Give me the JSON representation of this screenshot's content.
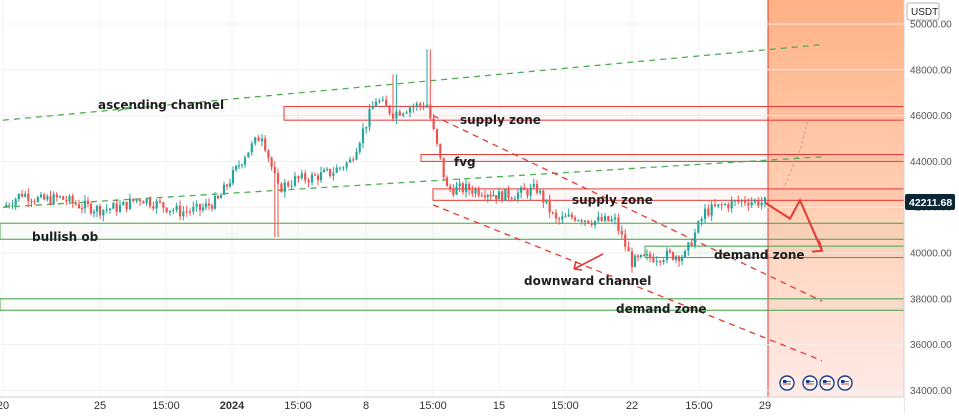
{
  "symbol": {
    "quote_currency": "USDT"
  },
  "price_label": "42211.68",
  "colors": {
    "bull": "#26a69a",
    "bear": "#ef5350",
    "channel": "#4caf50",
    "supply": "#e53935",
    "demand": "#43a047",
    "forecast": "#e53935",
    "projection_bg": "#ffb38a",
    "price_label_bg": "#0b2735"
  },
  "annotations": {
    "ascending_channel": "ascending channel",
    "supply_zone_upper": "supply zone",
    "fvg": "fvg",
    "supply_zone_lower": "supply zone",
    "bullish_ob": "bullish ob",
    "downward_channel": "downward channel",
    "demand_zone_upper": "demand zone",
    "demand_zone_lower": "demand zone"
  },
  "event_icons": [
    "us-flag-icon",
    "us-flag-icon",
    "us-flag-icon",
    "us-flag-icon"
  ],
  "chart_data": {
    "type": "candlestick",
    "title": "",
    "xlabel": "",
    "ylabel": "",
    "ylim": [
      33800,
      50800
    ],
    "grid": true,
    "y_ticks": [
      "50000.00",
      "48000.00",
      "46000.00",
      "44000.00",
      "42000.00",
      "40000.00",
      "38000.00",
      "36000.00",
      "34000.00"
    ],
    "x_ticks": [
      "20",
      "25",
      "15:00",
      "2024",
      "15:00",
      "8",
      "15:00",
      "15",
      "15:00",
      "22",
      "15:00",
      "29"
    ],
    "current_price": 42211.68,
    "series": [
      {
        "name": "close",
        "points": [
          {
            "x": "20",
            "y": 42000
          },
          {
            "x": "21",
            "y": 42600
          },
          {
            "x": "22",
            "y": 42300
          },
          {
            "x": "23",
            "y": 42400
          },
          {
            "x": "24",
            "y": 42100
          },
          {
            "x": "25",
            "y": 41900
          },
          {
            "x": "26",
            "y": 42000
          },
          {
            "x": "27",
            "y": 42400
          },
          {
            "x": "28",
            "y": 42100
          },
          {
            "x": "29",
            "y": 41800
          },
          {
            "x": "30",
            "y": 41900
          },
          {
            "x": "31",
            "y": 42300
          },
          {
            "x": "2024",
            "y": 44300
          },
          {
            "x": "2",
            "y": 45200
          },
          {
            "x": "3",
            "y": 42800
          },
          {
            "x": "4",
            "y": 43200
          },
          {
            "x": "5",
            "y": 43300
          },
          {
            "x": "6",
            "y": 43500
          },
          {
            "x": "7",
            "y": 44000
          },
          {
            "x": "8",
            "y": 46700
          },
          {
            "x": "9",
            "y": 46100
          },
          {
            "x": "10",
            "y": 46400
          },
          {
            "x": "11",
            "y": 46500
          },
          {
            "x": "12",
            "y": 42800
          },
          {
            "x": "13",
            "y": 42800
          },
          {
            "x": "14",
            "y": 42700
          },
          {
            "x": "15",
            "y": 42500
          },
          {
            "x": "16",
            "y": 42600
          },
          {
            "x": "17",
            "y": 42800
          },
          {
            "x": "18",
            "y": 41400
          },
          {
            "x": "19",
            "y": 41600
          },
          {
            "x": "20",
            "y": 41400
          },
          {
            "x": "21",
            "y": 41400
          },
          {
            "x": "22",
            "y": 39600
          },
          {
            "x": "23",
            "y": 39800
          },
          {
            "x": "24",
            "y": 39900
          },
          {
            "x": "25",
            "y": 39900
          },
          {
            "x": "26",
            "y": 41800
          },
          {
            "x": "27",
            "y": 42100
          },
          {
            "x": "28",
            "y": 42300
          },
          {
            "x": "29",
            "y": 42211.68
          }
        ]
      }
    ],
    "lines": [
      {
        "label": "ascending channel",
        "style": "dashed",
        "points": [
          [
            "20",
            42000
          ],
          [
            "3 Feb",
            44200
          ]
        ]
      },
      {
        "label": "ascending channel",
        "style": "dashed",
        "points": [
          [
            "20",
            45800
          ],
          [
            "3 Feb",
            49100
          ]
        ]
      },
      {
        "label": "downward channel",
        "style": "dashed",
        "points": [
          [
            "12",
            46000
          ],
          [
            "3 Feb",
            37900
          ]
        ]
      },
      {
        "label": "downward channel",
        "style": "dashed",
        "points": [
          [
            "12",
            42100
          ],
          [
            "3 Feb",
            35300
          ]
        ]
      }
    ],
    "zones": [
      {
        "label": "supply zone",
        "kind": "supply",
        "y": [
          45800,
          46400
        ]
      },
      {
        "label": "fvg",
        "kind": "supply",
        "y": [
          44000,
          44300
        ]
      },
      {
        "label": "supply zone",
        "kind": "supply",
        "y": [
          42300,
          42800
        ]
      },
      {
        "label": "bullish ob",
        "kind": "demand",
        "y": [
          40600,
          41300
        ]
      },
      {
        "label": "demand zone",
        "kind": "demand",
        "y": [
          39800,
          40300
        ]
      },
      {
        "label": "demand zone",
        "kind": "demand",
        "y": [
          37500,
          38000
        ]
      }
    ],
    "forecast": [
      [
        "29",
        42200
      ],
      [
        "31",
        41500
      ],
      [
        "1 Feb",
        42300
      ],
      [
        "3 Feb",
        40100
      ]
    ]
  }
}
